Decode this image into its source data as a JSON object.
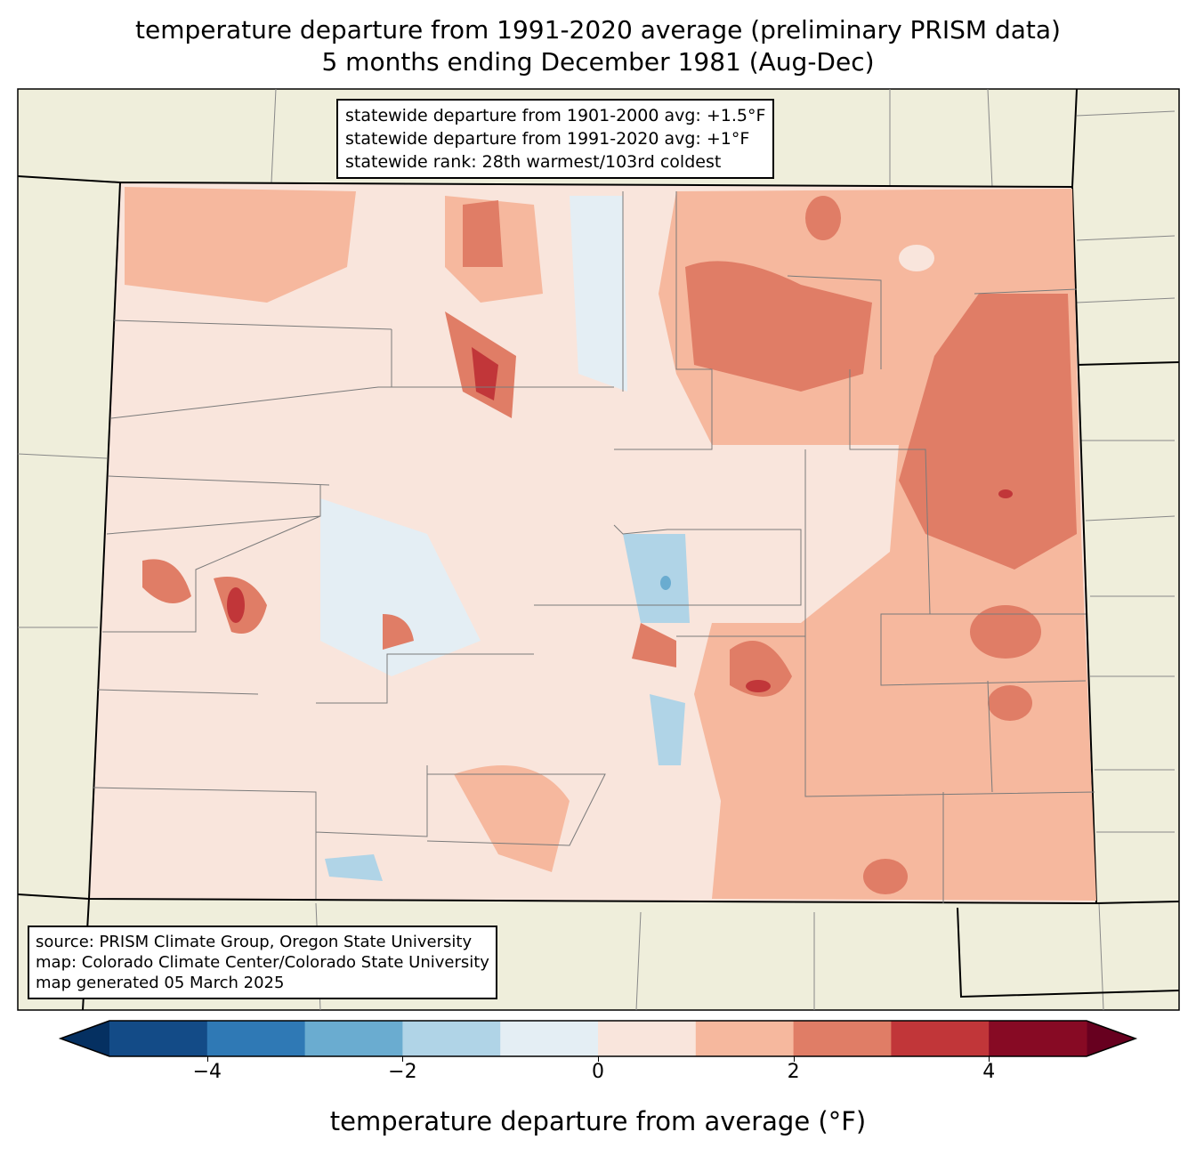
{
  "title": {
    "line1": "temperature departure from 1991-2020 average (preliminary PRISM data)",
    "line2": "5 months ending December 1981 (Aug-Dec)"
  },
  "stats_box": {
    "line1": "statewide departure from 1901-2000 avg: +1.5°F",
    "line2": "statewide departure from 1991-2020 avg: +1°F",
    "line3": "statewide rank: 28th warmest/103rd coldest"
  },
  "source_box": {
    "line1": "source: PRISM Climate Group, Oregon State University",
    "line2": "map: Colorado Climate Center/Colorado State University",
    "line3": "map generated 05 March 2025"
  },
  "colorbar": {
    "label": "temperature departure from average (°F)",
    "range": [
      -5,
      5
    ],
    "bounds": [
      -5,
      -4,
      -3,
      -2,
      -1,
      0,
      1,
      2,
      3,
      4,
      5
    ],
    "colors": [
      "#134b87",
      "#2f79b5",
      "#6aacd0",
      "#b0d4e7",
      "#e4eef4",
      "#f9e5dc",
      "#f6b89e",
      "#e07d66",
      "#c13639",
      "#870a24"
    ],
    "under_color": "#053061",
    "over_color": "#67001f",
    "ticks": [
      {
        "value": -4,
        "label": "−4"
      },
      {
        "value": -2,
        "label": "−2"
      },
      {
        "value": 0,
        "label": "0"
      },
      {
        "value": 2,
        "label": "2"
      },
      {
        "value": 4,
        "label": "4"
      }
    ]
  },
  "map_colors": {
    "land": "#efeedb",
    "base": "#f9e5dc"
  }
}
